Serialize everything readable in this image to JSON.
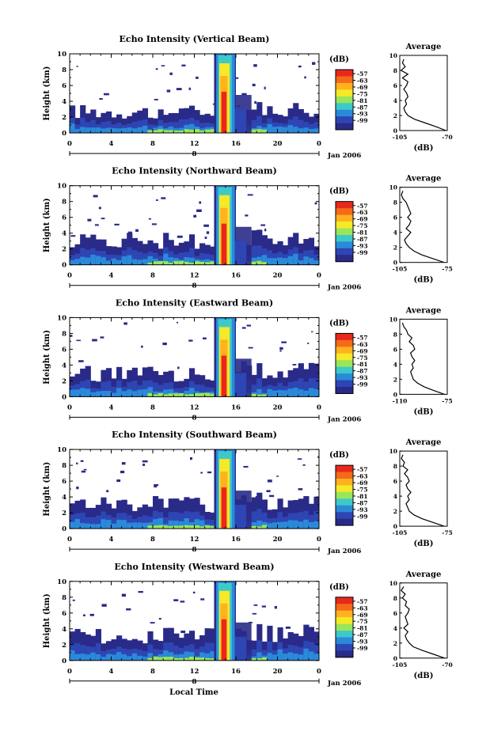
{
  "figure": {
    "x_axis_title": "Local Time",
    "date_label": "Jan 2006",
    "colorbar_unit": "(dB)",
    "colorbar_scale": [
      "-57",
      "-63",
      "-69",
      "-75",
      "-81",
      "-87",
      "-93",
      "-99"
    ],
    "colorbar_colors": [
      "#e8281c",
      "#f46a1a",
      "#ffb21e",
      "#f5e928",
      "#9ae65a",
      "#3ec9c9",
      "#2a8ad9",
      "#2e46b4",
      "#2a2a88"
    ],
    "palette": {
      "low": "#2b2b86",
      "mid": "#2a8ad9",
      "high": "#e8281c"
    }
  },
  "chart_data": [
    {
      "type": "heatmap",
      "title": "Echo Intensity (Vertical Beam)",
      "ylabel": "Height (km)",
      "xlabel": "Local Time",
      "x_ticks": [
        "0",
        "4",
        "8",
        "12",
        "16",
        "20",
        "0"
      ],
      "date_tick": "8",
      "y_ticks": [
        "0",
        "2",
        "4",
        "6",
        "8",
        "10"
      ],
      "xlim": [
        0,
        24
      ],
      "ylim": [
        0,
        10
      ],
      "colorbar": {
        "unit": "(dB)",
        "levels": [
          -57,
          -63,
          -69,
          -75,
          -81,
          -87,
          -93,
          -99
        ]
      },
      "profile": {
        "title": "Average",
        "xlabel": "(dB)",
        "x_ticks": [
          "-105",
          "-70"
        ],
        "xlim": [
          -105,
          -70
        ],
        "y_ticks": [
          "0",
          "2",
          "4",
          "6",
          "8",
          "10"
        ],
        "height": [
          0,
          0.5,
          1,
          1.5,
          2,
          2.5,
          3,
          3.5,
          4,
          4.5,
          5,
          5.5,
          6,
          6.5,
          7,
          7.5,
          8,
          8.5,
          9,
          9.5
        ],
        "value": [
          -71,
          -78,
          -86,
          -94,
          -99,
          -101,
          -102,
          -100,
          -101,
          -99,
          -100,
          -102,
          -100,
          -99,
          -103,
          -99,
          -104,
          -101,
          -103,
          -102
        ]
      }
    },
    {
      "type": "heatmap",
      "title": "Echo Intensity (Northward Beam)",
      "ylabel": "Height (km)",
      "xlabel": "Local Time",
      "x_ticks": [
        "0",
        "4",
        "8",
        "12",
        "16",
        "20",
        "0"
      ],
      "date_tick": "8",
      "y_ticks": [
        "0",
        "2",
        "4",
        "6",
        "8",
        "10"
      ],
      "xlim": [
        0,
        24
      ],
      "ylim": [
        0,
        10
      ],
      "colorbar": {
        "unit": "(dB)",
        "levels": [
          -57,
          -63,
          -69,
          -75,
          -81,
          -87,
          -93,
          -99
        ]
      },
      "profile": {
        "title": "Average",
        "xlabel": "(dB)",
        "x_ticks": [
          "-105",
          "-75"
        ],
        "xlim": [
          -105,
          -75
        ],
        "y_ticks": [
          "0",
          "2",
          "4",
          "6",
          "8",
          "10"
        ],
        "height": [
          0,
          0.5,
          1,
          1.5,
          2,
          2.5,
          3,
          3.5,
          4,
          4.5,
          5,
          5.5,
          6,
          6.5,
          7,
          7.5,
          8,
          8.5,
          9,
          9.5
        ],
        "value": [
          -77,
          -84,
          -91,
          -96,
          -99,
          -101,
          -102,
          -100,
          -98,
          -101,
          -99,
          -98,
          -100,
          -98,
          -99,
          -100,
          -101,
          -103,
          -104,
          -103
        ]
      }
    },
    {
      "type": "heatmap",
      "title": "Echo Intensity (Eastward Beam)",
      "ylabel": "Height (km)",
      "xlabel": "Local Time",
      "x_ticks": [
        "0",
        "4",
        "8",
        "12",
        "16",
        "20",
        "0"
      ],
      "date_tick": "8",
      "y_ticks": [
        "0",
        "2",
        "4",
        "6",
        "8",
        "10"
      ],
      "xlim": [
        0,
        24
      ],
      "ylim": [
        0,
        10
      ],
      "colorbar": {
        "unit": "(dB)",
        "levels": [
          -57,
          -63,
          -69,
          -75,
          -81,
          -87,
          -93,
          -99
        ]
      },
      "profile": {
        "title": "Average",
        "xlabel": "(dB)",
        "x_ticks": [
          "-110",
          "-75"
        ],
        "xlim": [
          -110,
          -75
        ],
        "y_ticks": [
          "0",
          "2",
          "4",
          "6",
          "8",
          "10"
        ],
        "height": [
          0,
          0.5,
          1,
          1.5,
          2,
          2.5,
          3,
          3.5,
          4,
          4.5,
          5,
          5.5,
          6,
          6.5,
          7,
          7.5,
          8,
          8.5,
          9,
          9.5
        ],
        "value": [
          -77,
          -85,
          -92,
          -97,
          -100,
          -101,
          -102,
          -100,
          -101,
          -99,
          -101,
          -102,
          -99,
          -100,
          -103,
          -101,
          -104,
          -105,
          -107,
          -108
        ]
      }
    },
    {
      "type": "heatmap",
      "title": "Echo Intensity (Southward Beam)",
      "ylabel": "Height (km)",
      "xlabel": "Local Time",
      "x_ticks": [
        "0",
        "4",
        "8",
        "12",
        "16",
        "20",
        "0"
      ],
      "date_tick": "8",
      "y_ticks": [
        "0",
        "2",
        "4",
        "6",
        "8",
        "10"
      ],
      "xlim": [
        0,
        24
      ],
      "ylim": [
        0,
        10
      ],
      "colorbar": {
        "unit": "(dB)",
        "levels": [
          -57,
          -63,
          -69,
          -75,
          -81,
          -87,
          -93,
          -99
        ]
      },
      "profile": {
        "title": "Average",
        "xlabel": "(dB)",
        "x_ticks": [
          "-105",
          "-75"
        ],
        "xlim": [
          -105,
          -75
        ],
        "y_ticks": [
          "0",
          "2",
          "4",
          "6",
          "8",
          "10"
        ],
        "height": [
          0,
          0.5,
          1,
          1.5,
          2,
          2.5,
          3,
          3.5,
          4,
          4.5,
          5,
          5.5,
          6,
          6.5,
          7,
          7.5,
          8,
          8.5,
          9,
          9.5
        ],
        "value": [
          -77,
          -84,
          -91,
          -96,
          -99,
          -100,
          -101,
          -99,
          -100,
          -98,
          -100,
          -101,
          -99,
          -100,
          -102,
          -100,
          -103,
          -102,
          -104,
          -103
        ]
      }
    },
    {
      "type": "heatmap",
      "title": "Echo Intensity (Westward Beam)",
      "ylabel": "Height (km)",
      "xlabel": "Local Time",
      "x_ticks": [
        "0",
        "4",
        "8",
        "12",
        "16",
        "20",
        "0"
      ],
      "date_tick": "8",
      "y_ticks": [
        "0",
        "2",
        "4",
        "6",
        "8",
        "10"
      ],
      "xlim": [
        0,
        24
      ],
      "ylim": [
        0,
        10
      ],
      "colorbar": {
        "unit": "(dB)",
        "levels": [
          -57,
          -63,
          -69,
          -75,
          -81,
          -87,
          -93,
          -99
        ]
      },
      "profile": {
        "title": "Average",
        "xlabel": "(dB)",
        "x_ticks": [
          "-105",
          "-70"
        ],
        "xlim": [
          -105,
          -70
        ],
        "y_ticks": [
          "0",
          "2",
          "4",
          "6",
          "8",
          "10"
        ],
        "height": [
          0,
          0.5,
          1,
          1.5,
          2,
          2.5,
          3,
          3.5,
          4,
          4.5,
          5,
          5.5,
          6,
          6.5,
          7,
          7.5,
          8,
          8.5,
          9,
          9.5
        ],
        "value": [
          -72,
          -80,
          -88,
          -95,
          -98,
          -100,
          -101,
          -99,
          -102,
          -99,
          -100,
          -101,
          -99,
          -98,
          -101,
          -100,
          -103,
          -101,
          -104,
          -102
        ]
      }
    }
  ]
}
